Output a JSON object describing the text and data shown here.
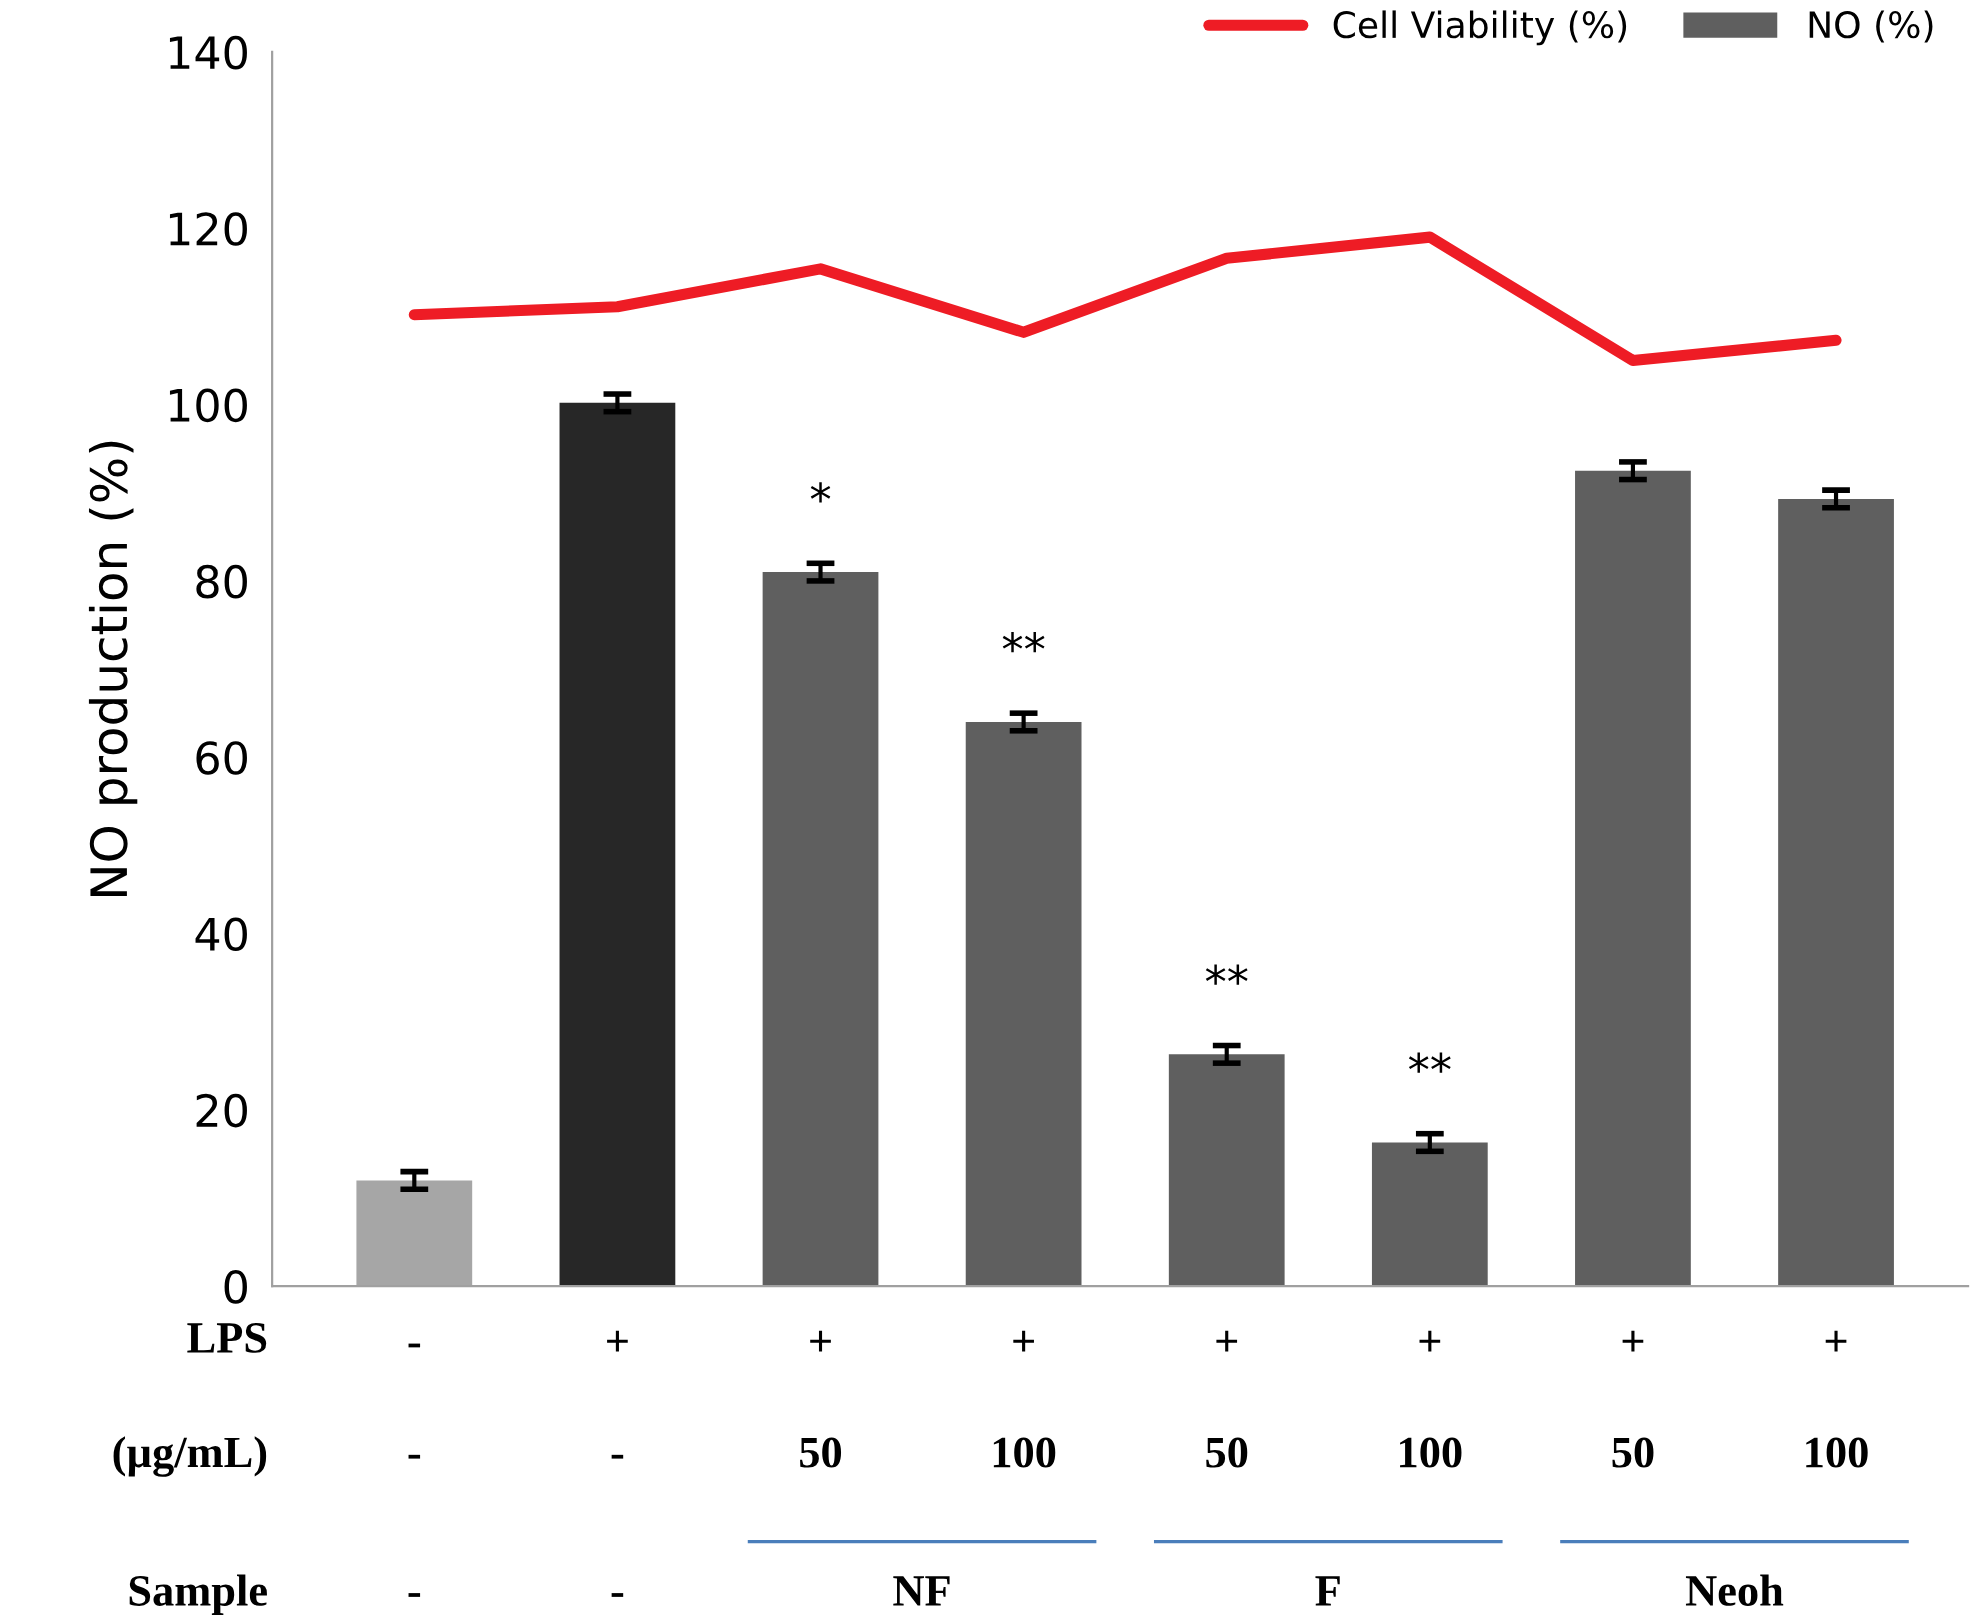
{
  "chart_data": {
    "type": "bar",
    "ylabel": "NO production (%)",
    "categories": [
      "-\n-",
      "+\n-",
      "+\n50",
      "+\n100",
      "+\n50",
      "+\n100",
      "+\n50",
      "+\n100"
    ],
    "series": [
      {
        "name": "Cell Viability (%)",
        "type": "line",
        "color": "#ee1c25",
        "values": [
          110.2,
          111.1,
          115.4,
          108.2,
          116.6,
          119,
          105,
          107.3
        ]
      },
      {
        "name": "NO (%)",
        "color": "#5f5f5f",
        "colors": [
          "#a6a6a6",
          "#272727",
          "#5f5f5f",
          "#5f5f5f",
          "#5f5f5f",
          "#5f5f5f",
          "#5f5f5f",
          "#5f5f5f"
        ],
        "values": [
          12,
          100.2,
          81,
          64,
          26.3,
          16.3,
          92.5,
          89.3
        ],
        "errors": [
          1,
          1,
          1,
          1,
          1,
          1,
          1,
          1
        ],
        "value_labels": [
          null,
          null,
          "*",
          "**",
          "**",
          "**",
          null,
          null
        ]
      }
    ],
    "annotations": [
      "LPS",
      "(µg/mL)",
      "Sample",
      "-",
      "-",
      "NF",
      "F",
      "Neoh"
    ],
    "ylim": [
      0,
      140
    ],
    "yticks": [
      0,
      20,
      40,
      60,
      80,
      100,
      120,
      140
    ],
    "legend": "top right",
    "marker": "none",
    "line_style": "solid"
  }
}
